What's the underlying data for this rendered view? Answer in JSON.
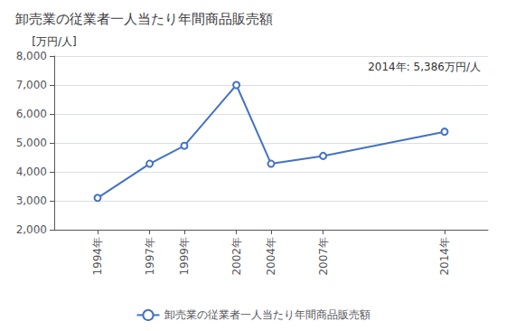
{
  "chart_data": {
    "type": "line",
    "title": "卸売業の従業者一人当たり年間商品販売額",
    "ylabel": "[万円/人]",
    "annotation": "2014年: 5,386万円/人",
    "x": [
      1994,
      1997,
      1999,
      2002,
      2004,
      2007,
      2014
    ],
    "series": [
      {
        "name": "卸売業の従業者一人当たり年間商品販売額",
        "color": "#4472C4",
        "values": [
          3100,
          4280,
          4900,
          7000,
          4280,
          4550,
          5386
        ]
      }
    ],
    "marker": "circle",
    "xlim": [
      1991.5,
      2016.5
    ],
    "xticks": [
      {
        "value": 1994,
        "label": "1994年"
      },
      {
        "value": 1997,
        "label": "1997年"
      },
      {
        "value": 1999,
        "label": "1999年"
      },
      {
        "value": 2002,
        "label": "2002年"
      },
      {
        "value": 2004,
        "label": "2004年"
      },
      {
        "value": 2007,
        "label": "2007年"
      },
      {
        "value": 2014,
        "label": "2014年"
      }
    ],
    "ylim": [
      2000,
      8000
    ],
    "yticks": [
      {
        "value": 2000,
        "label": "2,000"
      },
      {
        "value": 3000,
        "label": "3,000"
      },
      {
        "value": 4000,
        "label": "4,000"
      },
      {
        "value": 5000,
        "label": "5,000"
      },
      {
        "value": 6000,
        "label": "6,000"
      },
      {
        "value": 7000,
        "label": "7,000"
      },
      {
        "value": 8000,
        "label": "8,000"
      }
    ],
    "grid": true,
    "legend": "bottom"
  }
}
